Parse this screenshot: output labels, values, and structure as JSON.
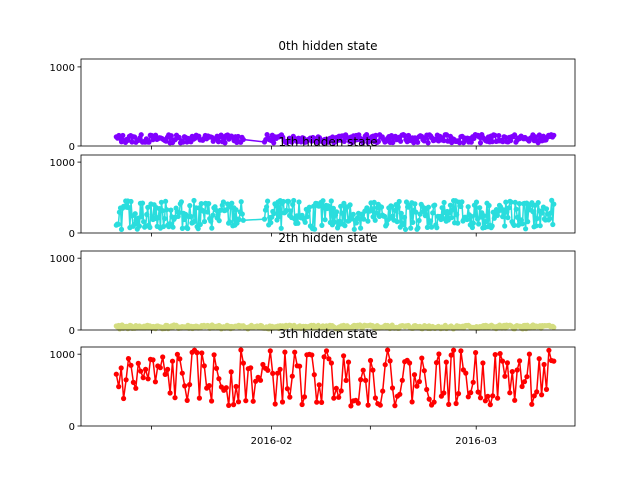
{
  "chart_data": [
    {
      "type": "line",
      "title": "0th hidden state",
      "color": "#8000ff",
      "ylim": [
        0,
        1100
      ],
      "yticks": [
        0,
        1000
      ],
      "ytick_labels": [
        "0",
        "1000"
      ],
      "band": [
        40,
        145
      ],
      "segments": [
        [
          "2016-01-10",
          "2016-01-28"
        ],
        [
          "2016-01-31",
          "2016-03-12"
        ]
      ],
      "count": 320
    },
    {
      "type": "line",
      "title": "1th hidden state",
      "color": "#2adddd",
      "ylim": [
        0,
        1100
      ],
      "yticks": [
        0,
        1000
      ],
      "ytick_labels": [
        "0",
        "1000"
      ],
      "band": [
        50,
        460
      ],
      "segments": [
        [
          "2016-01-10",
          "2016-01-28"
        ],
        [
          "2016-01-31",
          "2016-03-12"
        ]
      ],
      "count": 400
    },
    {
      "type": "line",
      "title": "2th hidden state",
      "color": "#d4dd80",
      "ylim": [
        0,
        1100
      ],
      "yticks": [
        0,
        1000
      ],
      "ytick_labels": [
        "0",
        "1000"
      ],
      "band": [
        15,
        70
      ],
      "segments": [
        [
          "2016-01-10",
          "2016-03-12"
        ]
      ],
      "count": 380
    },
    {
      "type": "line",
      "title": "3th hidden state",
      "color": "#ff0000",
      "ylim": [
        0,
        1100
      ],
      "yticks": [
        0,
        1000
      ],
      "ytick_labels": [
        "0",
        "1000"
      ],
      "band": [
        280,
        1060
      ],
      "segments": [
        [
          "2016-01-10",
          "2016-03-12"
        ]
      ],
      "count": 180
    }
  ],
  "xaxis": {
    "range": [
      "2016-01-05",
      "2016-03-15"
    ],
    "ticks": [
      "2016-01-15",
      "2016-02-01",
      "2016-02-15",
      "2016-03-01"
    ],
    "tick_labels": [
      "",
      "2016-02",
      "",
      "2016-03"
    ]
  }
}
